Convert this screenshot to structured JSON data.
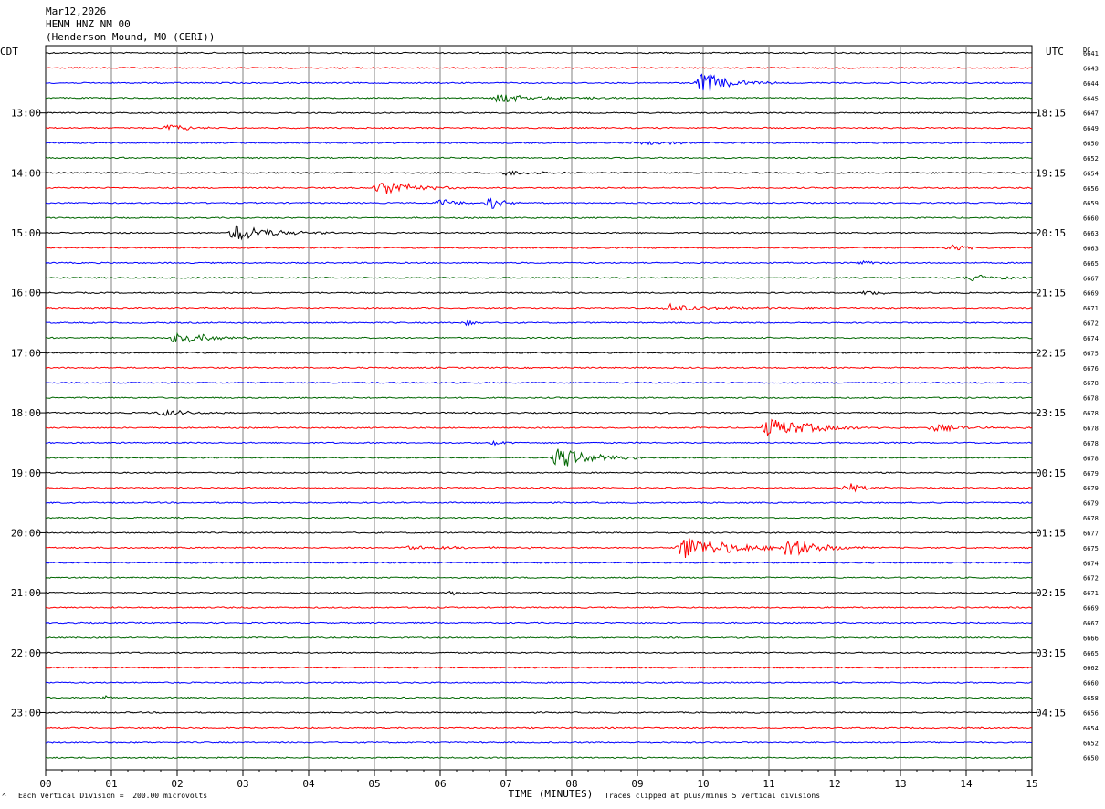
{
  "header": {
    "date": "Mar12,2026",
    "station": "HENM HNZ NM 00",
    "location": "(Henderson Mound, MO (CERI))"
  },
  "left_axis_label": "CDT",
  "right_axis_label": "UTC",
  "dc_label": "DC",
  "xlabel": "TIME (MINUTES)",
  "footer": {
    "scale_note": "Each Vertical Division =  200.00 microvolts",
    "clip_note": "Traces clipped at plus/minus 5 vertical divisions",
    "corner_glyph": "^"
  },
  "colors": {
    "trace_cycle": [
      "#000000",
      "#ff0000",
      "#0000ff",
      "#006600"
    ],
    "grid": "#808080"
  },
  "chart_data": {
    "type": "line",
    "title": "HENM HNZ NM 00",
    "xlim": [
      0,
      15
    ],
    "x_ticks": [
      "00",
      "01",
      "02",
      "03",
      "04",
      "05",
      "06",
      "07",
      "08",
      "09",
      "10",
      "11",
      "12",
      "13",
      "14",
      "15"
    ],
    "row_minutes": 15,
    "row_count": 48,
    "left_time_labels": [
      {
        "row": 4,
        "label": "13:00"
      },
      {
        "row": 8,
        "label": "14:00"
      },
      {
        "row": 12,
        "label": "15:00"
      },
      {
        "row": 16,
        "label": "16:00"
      },
      {
        "row": 20,
        "label": "17:00"
      },
      {
        "row": 24,
        "label": "18:00"
      },
      {
        "row": 28,
        "label": "19:00"
      },
      {
        "row": 32,
        "label": "20:00"
      },
      {
        "row": 36,
        "label": "21:00"
      },
      {
        "row": 40,
        "label": "22:00"
      },
      {
        "row": 44,
        "label": "23:00"
      }
    ],
    "right_time_labels": [
      {
        "row": 4,
        "label": "18:15"
      },
      {
        "row": 8,
        "label": "19:15"
      },
      {
        "row": 12,
        "label": "20:15"
      },
      {
        "row": 16,
        "label": "21:15"
      },
      {
        "row": 20,
        "label": "22:15"
      },
      {
        "row": 24,
        "label": "23:15"
      },
      {
        "row": 28,
        "label": "00:15"
      },
      {
        "row": 32,
        "label": "01:15"
      },
      {
        "row": 36,
        "label": "02:15"
      },
      {
        "row": 40,
        "label": "03:15"
      },
      {
        "row": 44,
        "label": "04:15"
      }
    ],
    "dc_offsets": [
      "6641",
      "6643",
      "6644",
      "6645",
      "6647",
      "6649",
      "6650",
      "6652",
      "6654",
      "6656",
      "6659",
      "6660",
      "6663",
      "6663",
      "6665",
      "6667",
      "6669",
      "6671",
      "6672",
      "6674",
      "6675",
      "6676",
      "6678",
      "6678",
      "6678",
      "6678",
      "6678",
      "6678",
      "6679",
      "6679",
      "6679",
      "6678",
      "6677",
      "6675",
      "6674",
      "6672",
      "6671",
      "6669",
      "6667",
      "6666",
      "6665",
      "6662",
      "6660",
      "6658",
      "6656",
      "6654",
      "6652",
      "6650"
    ],
    "events": [
      {
        "row": 2,
        "minute": 10.0,
        "amplitude": 12,
        "duration": 1.2
      },
      {
        "row": 3,
        "minute": 6.9,
        "amplitude": 5,
        "duration": 2.0
      },
      {
        "row": 5,
        "minute": 1.9,
        "amplitude": 4,
        "duration": 0.8
      },
      {
        "row": 6,
        "minute": 9.0,
        "amplitude": 3,
        "duration": 1.5
      },
      {
        "row": 8,
        "minute": 7.0,
        "amplitude": 3,
        "duration": 1.3
      },
      {
        "row": 9,
        "minute": 5.1,
        "amplitude": 9,
        "duration": 1.5
      },
      {
        "row": 10,
        "minute": 6.0,
        "amplitude": 4,
        "duration": 1.0
      },
      {
        "row": 10,
        "minute": 6.8,
        "amplitude": 7,
        "duration": 0.5
      },
      {
        "row": 12,
        "minute": 2.9,
        "amplitude": 10,
        "duration": 1.5
      },
      {
        "row": 13,
        "minute": 13.8,
        "amplitude": 4,
        "duration": 0.6
      },
      {
        "row": 14,
        "minute": 12.4,
        "amplitude": 3,
        "duration": 0.6
      },
      {
        "row": 15,
        "minute": 14.1,
        "amplitude": 4,
        "duration": 1.2
      },
      {
        "row": 16,
        "minute": 12.5,
        "amplitude": 3,
        "duration": 1.0
      },
      {
        "row": 17,
        "minute": 9.5,
        "amplitude": 4,
        "duration": 2.2
      },
      {
        "row": 18,
        "minute": 6.4,
        "amplitude": 3,
        "duration": 0.4
      },
      {
        "row": 19,
        "minute": 2.0,
        "amplitude": 8,
        "duration": 1.4
      },
      {
        "row": 24,
        "minute": 1.8,
        "amplitude": 4,
        "duration": 1.2
      },
      {
        "row": 25,
        "minute": 11.0,
        "amplitude": 11,
        "duration": 2.0
      },
      {
        "row": 25,
        "minute": 13.5,
        "amplitude": 4,
        "duration": 1.5
      },
      {
        "row": 26,
        "minute": 6.8,
        "amplitude": 3,
        "duration": 0.6
      },
      {
        "row": 27,
        "minute": 7.8,
        "amplitude": 12,
        "duration": 1.4
      },
      {
        "row": 29,
        "minute": 12.2,
        "amplitude": 5,
        "duration": 0.8
      },
      {
        "row": 33,
        "minute": 9.7,
        "amplitude": 14,
        "duration": 2.0
      },
      {
        "row": 33,
        "minute": 11.3,
        "amplitude": 12,
        "duration": 1.3
      },
      {
        "row": 33,
        "minute": 5.5,
        "amplitude": 2,
        "duration": 3.0
      },
      {
        "row": 36,
        "minute": 6.2,
        "amplitude": 2,
        "duration": 0.6
      },
      {
        "row": 43,
        "minute": 0.9,
        "amplitude": 2,
        "duration": 0.4
      }
    ]
  }
}
